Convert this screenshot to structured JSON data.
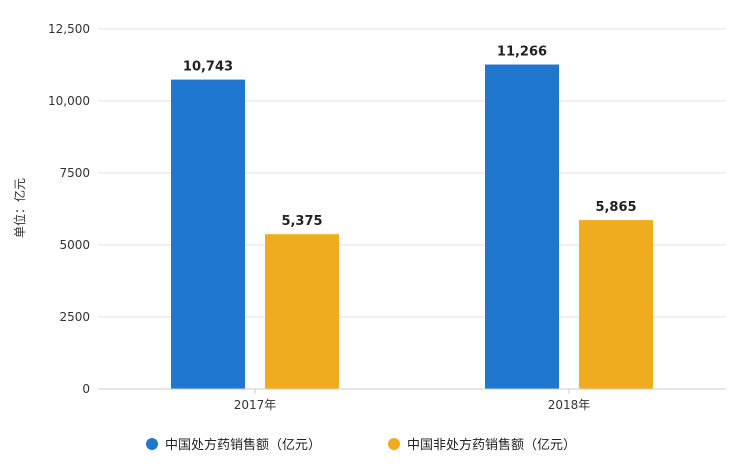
{
  "chart_data": {
    "type": "bar",
    "title": "",
    "xlabel": "",
    "ylabel": "单位：亿元",
    "categories": [
      "2017年",
      "2018年"
    ],
    "series": [
      {
        "name": "中国处方药销售额（亿元）",
        "values": [
          10743,
          11266
        ],
        "labels": [
          "10,743",
          "11,266"
        ],
        "color": "#1f77d0"
      },
      {
        "name": "中国非处方药销售额（亿元）",
        "values": [
          5375,
          5865
        ],
        "labels": [
          "5,375",
          "5,865"
        ],
        "color": "#f0ac1f"
      }
    ],
    "ylim": [
      0,
      12500
    ],
    "yticks": [
      0,
      2500,
      5000,
      7500,
      10000,
      12500
    ],
    "ytick_labels": [
      "0",
      "2500",
      "5000",
      "7500",
      "10,000",
      "12,500"
    ],
    "grid": true,
    "legend_position": "bottom"
  }
}
